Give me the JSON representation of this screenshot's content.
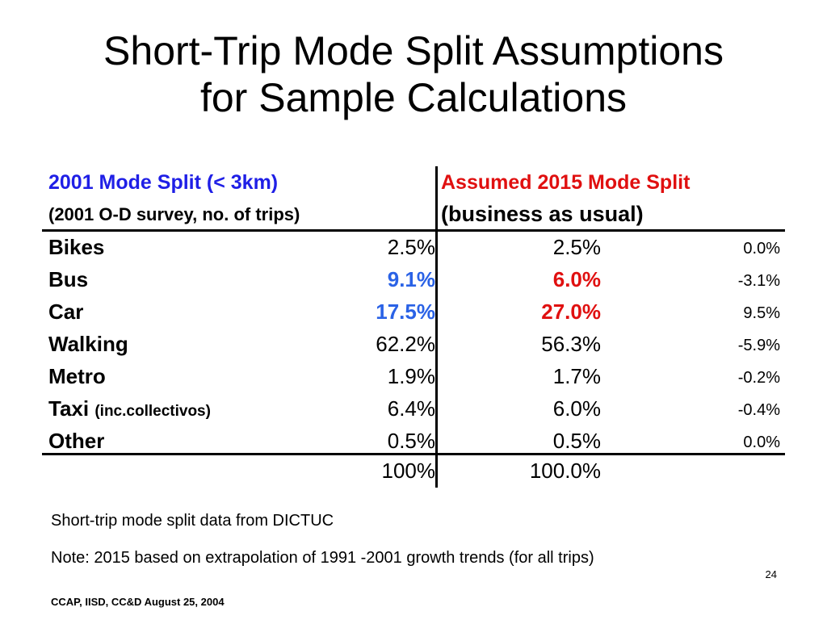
{
  "title": {
    "line1": "Short-Trip Mode Split Assumptions",
    "line2": "for Sample Calculations"
  },
  "table": {
    "col1_header": "2001 Mode Split (< 3km)",
    "col1_subheader": "(2001 O-D survey, no. of trips)",
    "col2_header": "Assumed 2015 Mode Split",
    "col2_subheader": "(business as usual)",
    "rows": [
      {
        "mode": "Bikes",
        "mode_note": "",
        "v2001": "2.5%",
        "v2015": "2.5%",
        "change": "0.0%"
      },
      {
        "mode": "Bus",
        "mode_note": "",
        "v2001": "9.1%",
        "v2015": "6.0%",
        "change": "-3.1%"
      },
      {
        "mode": "Car",
        "mode_note": "",
        "v2001": "17.5%",
        "v2015": "27.0%",
        "change": "9.5%"
      },
      {
        "mode": "Walking",
        "mode_note": "",
        "v2001": "62.2%",
        "v2015": "56.3%",
        "change": "-5.9%"
      },
      {
        "mode": "Metro",
        "mode_note": "",
        "v2001": "1.9%",
        "v2015": "1.7%",
        "change": "-0.2%"
      },
      {
        "mode": "Taxi",
        "mode_note": "(inc.collectivos)",
        "v2001": "6.4%",
        "v2015": "6.0%",
        "change": "-0.4%"
      },
      {
        "mode": "Other",
        "mode_note": "",
        "v2001": "0.5%",
        "v2015": "0.5%",
        "change": "0.0%"
      }
    ],
    "total": {
      "v2001": "100%",
      "v2015": "100.0%"
    }
  },
  "colors": {
    "header_2001": "#1f1fe6",
    "header_2015": "#e01010",
    "highlight_2001": "#2a62e6",
    "highlight_2015": "#e01010"
  },
  "notes": {
    "source": "Short-trip mode split data from DICTUC",
    "note": "Note: 2015 based on extrapolation of 1991 -2001 growth trends (for all trips)"
  },
  "footer": {
    "text": "CCAP, IISD, CC&D  August 25, 2004",
    "page_number": "24"
  }
}
